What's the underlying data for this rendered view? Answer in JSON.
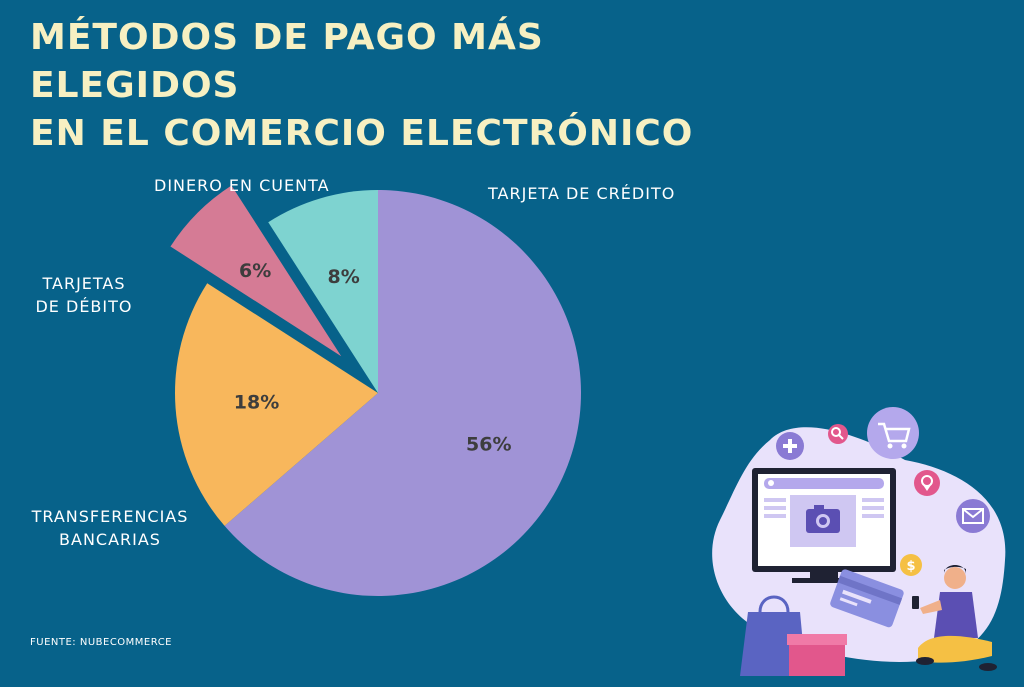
{
  "title": {
    "line1": "MÉTODOS DE PAGO MÁS ELEGIDOS",
    "line2": "EN EL COMERCIO ELECTRÓNICO"
  },
  "chart_data": {
    "type": "pie",
    "title": "MÉTODOS DE PAGO MÁS ELEGIDOS EN EL COMERCIO ELECTRÓNICO",
    "slices": [
      {
        "key": "credito",
        "label_lines": [
          "TARJETA DE CRÉDITO"
        ],
        "value": 56,
        "value_label": "56%",
        "color": "#a093d6"
      },
      {
        "key": "transferencias",
        "label_lines": [
          "TRANSFERENCIAS",
          "BANCARIAS"
        ],
        "value": 18,
        "value_label": "18%",
        "color": "#f8b75c"
      },
      {
        "key": "debito",
        "label_lines": [
          "TARJETAS",
          "DE DÉBITO"
        ],
        "value": 6,
        "value_label": "6%",
        "color": "#d57b95",
        "exploded": true
      },
      {
        "key": "cuenta",
        "label_lines": [
          "DINERO EN CUENTA"
        ],
        "value": 8,
        "value_label": "8%",
        "color": "#7ed3d0"
      }
    ],
    "legend": "none",
    "grid": false
  },
  "source": "FUENTE: NUBECOMMERCE",
  "colors": {
    "background": "#07628a",
    "title": "#f7f0c2",
    "value_text": "#3d3d3d",
    "label_text": "#ffffff"
  },
  "illustration": {
    "icons": [
      "plus-icon",
      "search-icon",
      "shopping-cart-icon",
      "location-pin-icon",
      "mail-icon",
      "dollar-coin-icon",
      "camera-icon",
      "credit-card-icon",
      "shopping-bag-icon",
      "gift-box-icon",
      "person-with-phone-icon"
    ]
  }
}
